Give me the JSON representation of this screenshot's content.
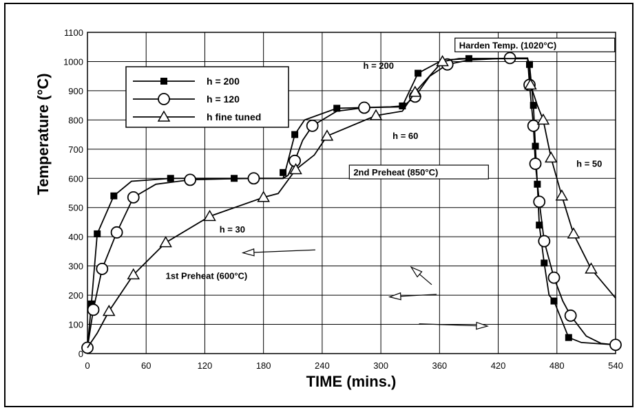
{
  "chart_data": {
    "type": "line",
    "xlabel": "TIME (mins.)",
    "ylabel": "Temperature (°C)",
    "xlim": [
      0,
      540
    ],
    "ylim": [
      0,
      1100
    ],
    "xticks": [
      0,
      60,
      120,
      180,
      240,
      300,
      360,
      420,
      480,
      540
    ],
    "yticks": [
      0,
      100,
      200,
      300,
      400,
      500,
      600,
      700,
      800,
      900,
      1000,
      1100
    ],
    "grid": true,
    "legend_position": "top-left",
    "series": [
      {
        "name": "h = 200",
        "marker": "square",
        "points": [
          [
            0,
            20
          ],
          [
            4,
            170
          ],
          [
            10,
            410
          ],
          [
            27,
            540
          ],
          [
            45,
            590
          ],
          [
            85,
            600
          ],
          [
            150,
            600
          ],
          [
            200,
            600
          ],
          [
            202,
            620
          ],
          [
            212,
            750
          ],
          [
            222,
            800
          ],
          [
            255,
            840
          ],
          [
            310,
            845
          ],
          [
            322,
            848
          ],
          [
            338,
            960
          ],
          [
            363,
            1005
          ],
          [
            390,
            1010
          ],
          [
            450,
            1010
          ],
          [
            452,
            990
          ],
          [
            456,
            850
          ],
          [
            458,
            710
          ],
          [
            460,
            580
          ],
          [
            462,
            440
          ],
          [
            467,
            310
          ],
          [
            472,
            200
          ],
          [
            477,
            180
          ],
          [
            492,
            55
          ],
          [
            505,
            38
          ],
          [
            540,
            30
          ]
        ]
      },
      {
        "name": "h = 120",
        "marker": "circle",
        "points": [
          [
            0,
            20
          ],
          [
            6,
            150
          ],
          [
            15,
            290
          ],
          [
            30,
            415
          ],
          [
            47,
            535
          ],
          [
            70,
            580
          ],
          [
            105,
            595
          ],
          [
            140,
            598
          ],
          [
            170,
            600
          ],
          [
            200,
            600
          ],
          [
            205,
            610
          ],
          [
            212,
            660
          ],
          [
            220,
            730
          ],
          [
            230,
            780
          ],
          [
            255,
            830
          ],
          [
            283,
            842
          ],
          [
            322,
            845
          ],
          [
            335,
            880
          ],
          [
            350,
            950
          ],
          [
            368,
            990
          ],
          [
            390,
            1005
          ],
          [
            432,
            1012
          ],
          [
            450,
            1012
          ],
          [
            452,
            920
          ],
          [
            456,
            780
          ],
          [
            458,
            650
          ],
          [
            462,
            520
          ],
          [
            467,
            385
          ],
          [
            477,
            260
          ],
          [
            486,
            180
          ],
          [
            494,
            130
          ],
          [
            510,
            60
          ],
          [
            525,
            35
          ],
          [
            540,
            30
          ]
        ]
      },
      {
        "name": "h  fine tuned",
        "marker": "triangle",
        "points": [
          [
            0,
            20
          ],
          [
            10,
            70
          ],
          [
            22,
            145
          ],
          [
            47,
            270
          ],
          [
            80,
            380
          ],
          [
            125,
            470
          ],
          [
            180,
            535
          ],
          [
            195,
            548
          ],
          [
            213,
            630
          ],
          [
            232,
            680
          ],
          [
            245,
            745
          ],
          [
            295,
            815
          ],
          [
            322,
            830
          ],
          [
            335,
            895
          ],
          [
            363,
            1000
          ],
          [
            380,
            1010
          ],
          [
            450,
            1010
          ],
          [
            453,
            920
          ],
          [
            460,
            850
          ],
          [
            466,
            800
          ],
          [
            474,
            670
          ],
          [
            485,
            540
          ],
          [
            497,
            410
          ],
          [
            515,
            290
          ],
          [
            540,
            190
          ]
        ]
      }
    ],
    "annotations": [
      {
        "text": "Harden Temp. (1020°C)",
        "x": 380,
        "y": 1045
      },
      {
        "text": "h = 200",
        "x": 282,
        "y": 975
      },
      {
        "text": "h = 60",
        "x": 312,
        "y": 735
      },
      {
        "text": "2nd Preheat (850°C)",
        "x": 272,
        "y": 610
      },
      {
        "text": "h = 50",
        "x": 500,
        "y": 640
      },
      {
        "text": "h = 30",
        "x": 135,
        "y": 415
      },
      {
        "text": "1st Preheat (600°C)",
        "x": 80,
        "y": 255
      }
    ]
  }
}
